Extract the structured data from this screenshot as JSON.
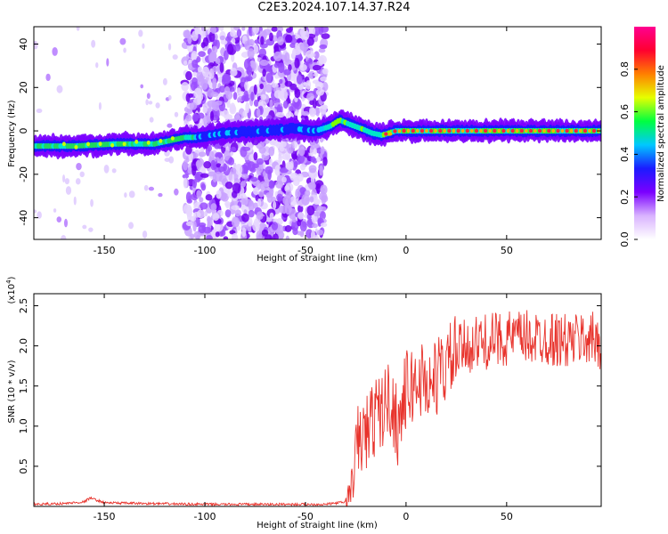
{
  "title": "C2E3.2024.107.14.37.R24",
  "chart_data": [
    {
      "type": "heatmap",
      "xlabel": "Height of straight line (km)",
      "ylabel": "Frequency (Hz)",
      "xlim": [
        -185,
        97
      ],
      "ylim": [
        -50,
        48
      ],
      "x_ticks": [
        -150,
        -100,
        -50,
        0,
        50
      ],
      "y_ticks": [
        -40,
        -20,
        0,
        20,
        40
      ],
      "grid": false,
      "ridge": {
        "x": [
          -185,
          -165,
          -145,
          -125,
          -110,
          -105,
          -90,
          -70,
          -55,
          -45,
          -38,
          -33,
          -28,
          -22,
          -17,
          -12,
          -5,
          10,
          40,
          70,
          97
        ],
        "y": [
          -7,
          -7,
          -6,
          -6,
          -3,
          -3,
          -1,
          0,
          1,
          0,
          2,
          5,
          3,
          1,
          -1,
          -2,
          0,
          0,
          0,
          0,
          0
        ]
      },
      "noise_region_x": [
        -110,
        -40
      ],
      "colorbar": {
        "label": "Normalized spectral amplitude",
        "ticks": [
          0.0,
          0.2,
          0.4,
          0.6,
          0.8
        ],
        "colors": [
          "#ffffff",
          "#d9b3ff",
          "#7b00ff",
          "#1b1bff",
          "#00c8ff",
          "#00ff40",
          "#e6ff00",
          "#ff7f00",
          "#ff0030",
          "#ff0090"
        ]
      }
    },
    {
      "type": "line",
      "xlabel": "Height of straight line (km)",
      "ylabel": "SNR (10 * v/v)",
      "y_multiplier": "(x10",
      "y_multiplier_exp": "4",
      "xlim": [
        -185,
        97
      ],
      "ylim": [
        0,
        2.65
      ],
      "x_ticks": [
        -150,
        -100,
        -50,
        0,
        50
      ],
      "y_ticks": [
        0.5,
        1.0,
        1.5,
        2.0,
        2.5
      ],
      "grid": false,
      "series": [
        {
          "color": "#e8332c",
          "x": [
            -185,
            -170,
            -160,
            -157,
            -150,
            -130,
            -100,
            -70,
            -40,
            -30,
            -27,
            -24,
            -20,
            -16,
            -12,
            -8,
            -4,
            0,
            4,
            8,
            12,
            16,
            20,
            25,
            30,
            40,
            50,
            60,
            70,
            80,
            90,
            97
          ],
          "y": [
            0.02,
            0.03,
            0.05,
            0.1,
            0.04,
            0.03,
            0.02,
            0.02,
            0.02,
            0.05,
            0.25,
            0.8,
            0.9,
            1.1,
            1.2,
            1.35,
            1.0,
            1.45,
            1.5,
            1.6,
            1.5,
            1.65,
            1.75,
            1.9,
            2.0,
            2.05,
            2.1,
            2.1,
            2.1,
            2.05,
            2.1,
            2.05
          ]
        }
      ]
    }
  ]
}
